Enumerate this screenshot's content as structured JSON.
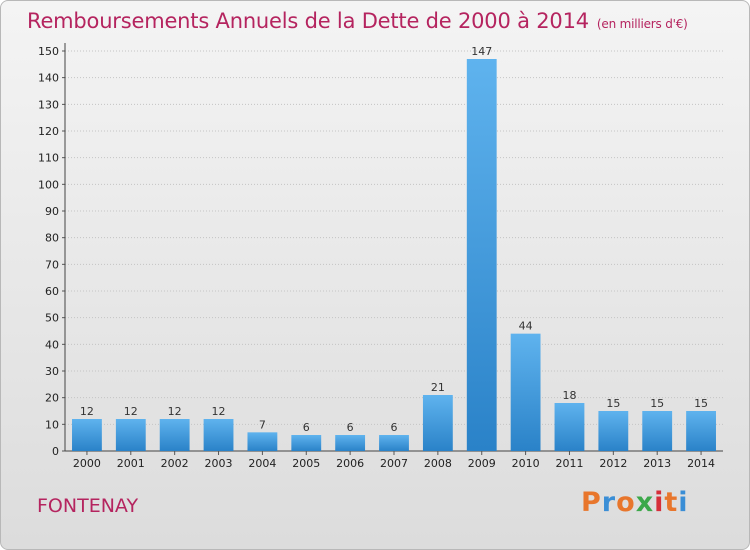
{
  "chart_data": {
    "type": "bar",
    "title": "Remboursements Annuels de la Dette de 2000 à 2014",
    "subtitle": "(en milliers d'€)",
    "categories": [
      "2000",
      "2001",
      "2002",
      "2003",
      "2004",
      "2005",
      "2006",
      "2007",
      "2008",
      "2009",
      "2010",
      "2011",
      "2012",
      "2013",
      "2014"
    ],
    "values": [
      12,
      12,
      12,
      12,
      7,
      6,
      6,
      6,
      21,
      147,
      44,
      18,
      15,
      15,
      15
    ],
    "ylim": [
      0,
      150
    ],
    "yticks": [
      0,
      10,
      20,
      30,
      40,
      50,
      60,
      70,
      80,
      90,
      100,
      110,
      120,
      130,
      140,
      150
    ],
    "grid": true,
    "xlabel": "",
    "ylabel": ""
  },
  "footer": {
    "commune": "FONTENAY",
    "brand": [
      "P",
      "r",
      "o",
      "x",
      "i",
      "t",
      "i"
    ]
  },
  "colors": {
    "title": "#b5245f",
    "bar_top": "#5fb3ee",
    "bar_bottom": "#2a82c8",
    "brand": [
      "#e8762c",
      "#3a8ed6",
      "#e8762c",
      "#3ca84a",
      "#d62f3a",
      "#e8762c",
      "#3a8ed6"
    ]
  }
}
